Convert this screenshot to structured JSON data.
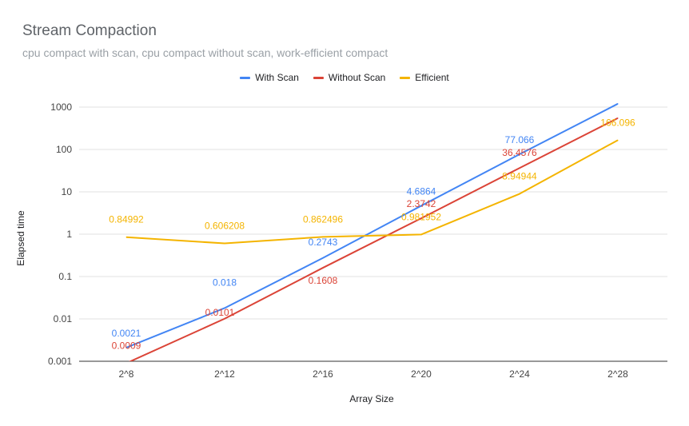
{
  "chart_data": {
    "type": "line",
    "title": "Stream Compaction",
    "subtitle": "cpu compact with scan, cpu compact without scan, work-efficient compact",
    "xlabel": "Array Size",
    "ylabel": "Elapsed time",
    "yscale": "log",
    "ylim": [
      0.001,
      1000
    ],
    "yticks": [
      "0.001",
      "0.01",
      "0.1",
      "1",
      "10",
      "100",
      "1000"
    ],
    "categories": [
      "2^8",
      "2^12",
      "2^16",
      "2^20",
      "2^24",
      "2^28"
    ],
    "legend_position": "top",
    "grid": true,
    "series": [
      {
        "name": "With Scan",
        "color": "#4285f4",
        "values": [
          0.0021,
          0.018,
          0.2743,
          4.6864,
          77.066,
          1200
        ],
        "labels": [
          "0.0021",
          "0.018",
          "0.2743",
          "4.6864",
          "77.066",
          ""
        ]
      },
      {
        "name": "Without Scan",
        "color": "#db4437",
        "values": [
          0.0009,
          0.0101,
          0.1608,
          2.3742,
          36.4576,
          550
        ],
        "labels": [
          "0.0009",
          "0.0101",
          "0.1608",
          "2.3742",
          "36.4576",
          ""
        ]
      },
      {
        "name": "Efficient",
        "color": "#f4b400",
        "values": [
          0.84992,
          0.606208,
          0.862496,
          0.981952,
          8.94944,
          166.096
        ],
        "labels": [
          "0.84992",
          "0.606208",
          "0.862496",
          "0.981952",
          "8.94944",
          "166.096"
        ]
      }
    ]
  }
}
